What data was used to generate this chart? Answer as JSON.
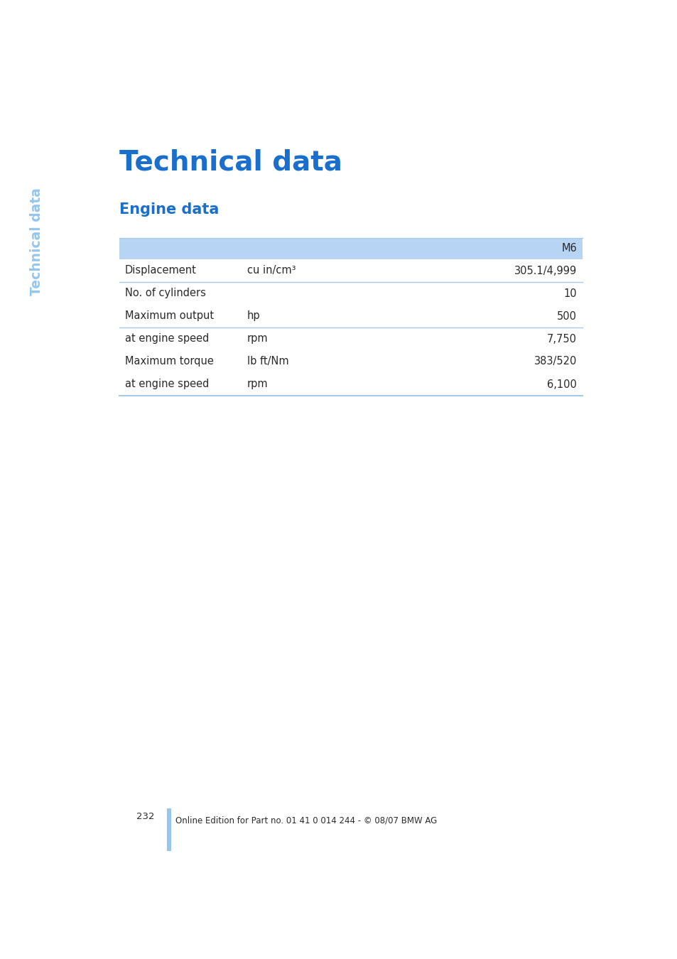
{
  "title": "Technical data",
  "subtitle": "Engine data",
  "sidebar_text": "Technical data",
  "sidebar_color": "#93c6f0",
  "title_color": "#1a6fcc",
  "subtitle_color": "#1a6fcc",
  "header_bg_color": "#b8d4f5",
  "body_text_color": "#2a2a2a",
  "line_color": "#a8c8e8",
  "blue_bar_color": "#93c6f0",
  "page_bg": "#ffffff",
  "table_header_label": "M6",
  "table_rows": [
    [
      "Displacement",
      "cu in/cm³",
      "305.1/4,999"
    ],
    [
      "No. of cylinders",
      "",
      "10"
    ],
    [
      "Maximum output",
      "hp",
      "500"
    ],
    [
      "at engine speed",
      "rpm",
      "7,750"
    ],
    [
      "Maximum torque",
      "lb ft/Nm",
      "383/520"
    ],
    [
      "at engine speed",
      "rpm",
      "6,100"
    ]
  ],
  "divider_before_rows": [
    2,
    4
  ],
  "page_number": "232",
  "footer_text": "Online Edition for Part no. 01 41 0 014 244 - © 08/07 BMW AG",
  "footer_bar_color": "#93c6f0"
}
